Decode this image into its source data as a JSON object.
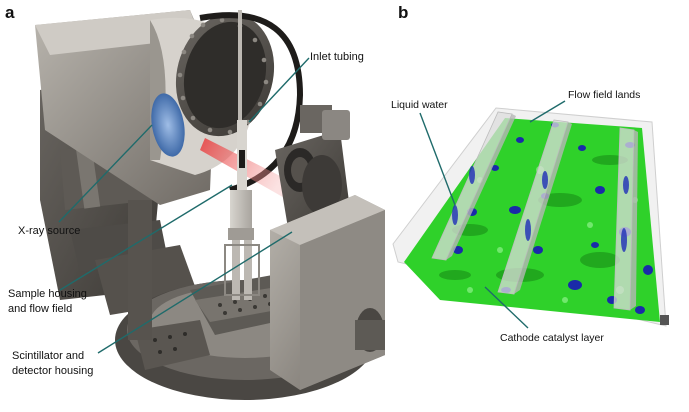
{
  "panels": {
    "a": {
      "letter": "a",
      "labels": {
        "inlet_tubing": "Inlet tubing",
        "xray_source": "X-ray source",
        "sample_housing_1": "Sample housing",
        "sample_housing_2": "and flow field",
        "scintillator_1": "Scintillator and",
        "scintillator_2": "detector housing"
      }
    },
    "b": {
      "letter": "b",
      "labels": {
        "liquid_water": "Liquid water",
        "flow_field_lands": "Flow field lands",
        "cathode_catalyst_layer": "Cathode catalyst layer"
      }
    }
  },
  "colors": {
    "pointer": "#1f6b6b",
    "catalyst_green": "#2fd12a",
    "water_blue": "#1a2aa8",
    "metal_gray": "#8a8580",
    "beam_red": "#e23a3a",
    "window_blue": "#5a86c8"
  }
}
